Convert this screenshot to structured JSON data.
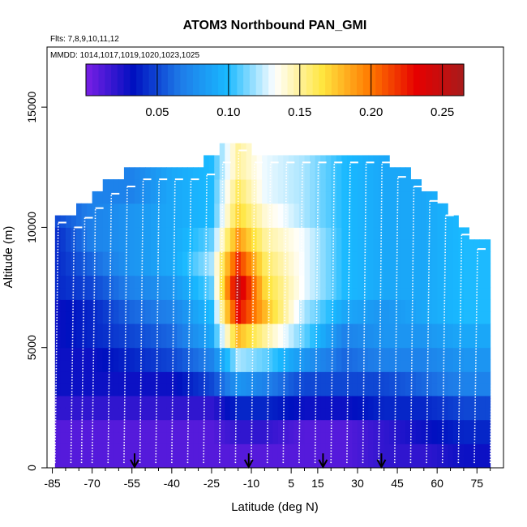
{
  "chart_data": {
    "type": "heatmap",
    "title": "ATOM3 Northbound PAN_GMI",
    "subtitle_flights": "Flts: 7,8,9,10,11,12",
    "subtitle_dates": "MMDD: 1014,1017,1019,1020,1023,1025",
    "xlabel": "Latitude (deg N)",
    "ylabel": "Altitude (m)",
    "xlim": [
      -87,
      85
    ],
    "ylim": [
      0,
      17500
    ],
    "x_ticks": [
      -85,
      -70,
      -55,
      -40,
      -25,
      -10,
      5,
      15,
      30,
      45,
      60,
      75
    ],
    "y_ticks": [
      0,
      5000,
      10000,
      15000
    ],
    "colorbar": {
      "range": [
        0,
        0.265
      ],
      "ticks": [
        0.05,
        0.1,
        0.15,
        0.2,
        0.25
      ],
      "tick_labels": [
        "0.05",
        "0.10",
        "0.15",
        "0.20",
        "0.25"
      ],
      "colors": [
        "#7a1fe6",
        "#0010c0",
        "#1e7be8",
        "#19b9ff",
        "#ffffff",
        "#ffe640",
        "#ff7a00",
        "#e60000",
        "#a81b1b"
      ]
    },
    "colorbar_position": "top",
    "marker_color": "#000000",
    "flight_track_color": "#ffffff",
    "profile_markers_lat": [
      -54,
      -11,
      17,
      39
    ],
    "column_tops": [
      {
        "lat": -84,
        "top": 10500
      },
      {
        "lat": -78,
        "top": 10300
      },
      {
        "lat": -74,
        "top": 10700
      },
      {
        "lat": -70,
        "top": 11100
      },
      {
        "lat": -64,
        "top": 11700
      },
      {
        "lat": -58,
        "top": 12000
      },
      {
        "lat": -52,
        "top": 12300
      },
      {
        "lat": -46,
        "top": 12300
      },
      {
        "lat": -40,
        "top": 12300
      },
      {
        "lat": -34,
        "top": 12300
      },
      {
        "lat": -28,
        "top": 12500
      },
      {
        "lat": -22,
        "top": 13000
      },
      {
        "lat": -16,
        "top": 13500
      },
      {
        "lat": -10,
        "top": 13000
      },
      {
        "lat": -4,
        "top": 13000
      },
      {
        "lat": 2,
        "top": 13000
      },
      {
        "lat": 8,
        "top": 13000
      },
      {
        "lat": 14,
        "top": 13000
      },
      {
        "lat": 20,
        "top": 13000
      },
      {
        "lat": 26,
        "top": 13000
      },
      {
        "lat": 32,
        "top": 13000
      },
      {
        "lat": 38,
        "top": 13000
      },
      {
        "lat": 44,
        "top": 12400
      },
      {
        "lat": 50,
        "top": 12000
      },
      {
        "lat": 56,
        "top": 11400
      },
      {
        "lat": 62,
        "top": 10800
      },
      {
        "lat": 68,
        "top": 10000
      },
      {
        "lat": 74,
        "top": 9400
      },
      {
        "lat": 80,
        "top": 9000
      }
    ],
    "value_grid_note_altitudes": [
      500,
      1500,
      2500,
      3500,
      4500,
      5500,
      6500,
      7500,
      8500,
      9500,
      10500,
      11500,
      12500
    ],
    "profiles_value_by_lat": [
      {
        "lat": -84,
        "values": [
          0.01,
          0.01,
          0.02,
          0.03,
          0.03,
          0.03,
          0.03,
          0.04,
          0.04,
          0.04,
          0.05
        ]
      },
      {
        "lat": -70,
        "values": [
          0.01,
          0.01,
          0.02,
          0.03,
          0.03,
          0.04,
          0.04,
          0.05,
          0.06,
          0.07,
          0.07
        ]
      },
      {
        "lat": -55,
        "values": [
          0.01,
          0.01,
          0.02,
          0.03,
          0.04,
          0.05,
          0.06,
          0.07,
          0.08,
          0.08,
          0.08,
          0.07
        ]
      },
      {
        "lat": -40,
        "values": [
          0.01,
          0.01,
          0.02,
          0.03,
          0.05,
          0.06,
          0.07,
          0.08,
          0.09,
          0.09,
          0.09,
          0.09
        ]
      },
      {
        "lat": -25,
        "values": [
          0.01,
          0.01,
          0.02,
          0.05,
          0.07,
          0.09,
          0.1,
          0.11,
          0.12,
          0.11,
          0.1,
          0.1
        ]
      },
      {
        "lat": -15,
        "values": [
          0.01,
          0.02,
          0.04,
          0.08,
          0.12,
          0.18,
          0.23,
          0.25,
          0.22,
          0.19,
          0.17,
          0.16,
          0.15
        ]
      },
      {
        "lat": -5,
        "values": [
          0.01,
          0.02,
          0.04,
          0.07,
          0.11,
          0.15,
          0.18,
          0.17,
          0.16,
          0.15,
          0.14,
          0.13,
          0.13
        ]
      },
      {
        "lat": 10,
        "values": [
          0.01,
          0.01,
          0.03,
          0.05,
          0.08,
          0.11,
          0.12,
          0.13,
          0.13,
          0.13,
          0.12,
          0.12,
          0.12
        ]
      },
      {
        "lat": 25,
        "values": [
          0.01,
          0.01,
          0.03,
          0.05,
          0.06,
          0.07,
          0.09,
          0.1,
          0.1,
          0.1,
          0.1,
          0.1,
          0.1
        ]
      },
      {
        "lat": 40,
        "values": [
          0.02,
          0.02,
          0.04,
          0.05,
          0.07,
          0.08,
          0.08,
          0.09,
          0.09,
          0.09,
          0.09,
          0.09
        ]
      },
      {
        "lat": 55,
        "values": [
          0.02,
          0.03,
          0.04,
          0.06,
          0.07,
          0.08,
          0.09,
          0.09,
          0.09,
          0.09,
          0.09
        ]
      },
      {
        "lat": 70,
        "values": [
          0.03,
          0.04,
          0.05,
          0.07,
          0.08,
          0.09,
          0.1,
          0.1,
          0.1,
          0.1
        ]
      }
    ]
  }
}
